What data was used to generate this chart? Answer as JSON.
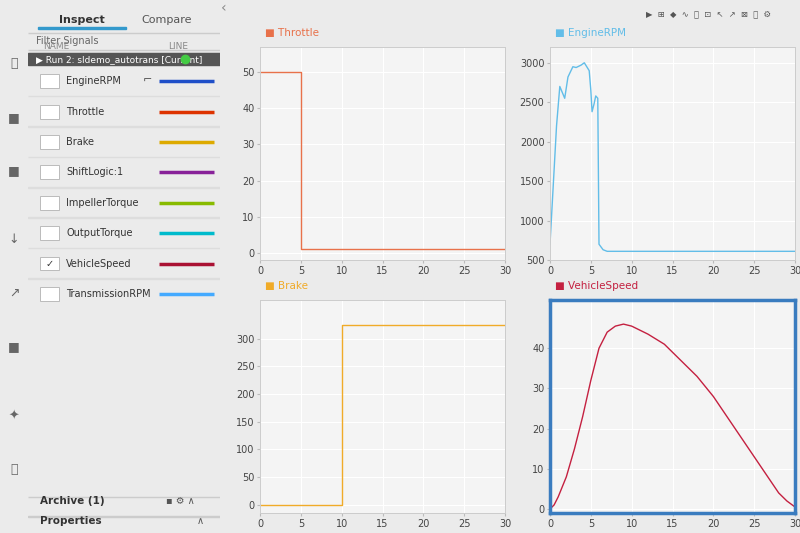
{
  "fig_width": 8.0,
  "fig_height": 5.33,
  "dpi": 100,
  "plots_bg_color": "#f4f4f4",
  "panel_bg_color": "#ebebeb",
  "sidebar_bg_color": "#ebebeb",
  "icon_strip_color": "#d5d5d5",
  "grid_color": "#ffffff",
  "subplot_titles": [
    "Throttle",
    "EngineRPM",
    "Brake",
    "VehicleSpeed"
  ],
  "subplot_colors": [
    "#e8714a",
    "#62bde8",
    "#f0ab28",
    "#c42040"
  ],
  "xlim": [
    0,
    30
  ],
  "xticklabels": [
    0,
    5,
    10,
    15,
    20,
    25,
    30
  ],
  "active_subplot_idx": 3,
  "active_border_color": "#3a7cbf",
  "throttle": {
    "x": [
      0,
      5,
      5,
      30
    ],
    "y": [
      50,
      50,
      1,
      1
    ],
    "ylim": [
      -2,
      57
    ],
    "yticks": [
      0,
      10,
      20,
      30,
      40,
      50
    ]
  },
  "engineRPM": {
    "x": [
      0,
      0.8,
      1.2,
      1.8,
      2.2,
      2.8,
      3.2,
      3.8,
      4.2,
      4.8,
      5.0,
      5.15,
      5.4,
      5.6,
      5.85,
      6.0,
      6.5,
      7.0,
      10.0,
      30.0
    ],
    "y": [
      700,
      2200,
      2700,
      2550,
      2820,
      2950,
      2940,
      2970,
      3000,
      2900,
      2650,
      2380,
      2480,
      2580,
      2550,
      700,
      630,
      610,
      610,
      610
    ],
    "ylim": [
      500,
      3200
    ],
    "yticks": [
      500,
      1000,
      1500,
      2000,
      2500,
      3000
    ]
  },
  "brake": {
    "x": [
      0,
      10,
      10,
      30
    ],
    "y": [
      0,
      0,
      325,
      325
    ],
    "ylim": [
      -15,
      370
    ],
    "yticks": [
      0,
      50,
      100,
      150,
      200,
      250,
      300
    ]
  },
  "vehicleSpeed": {
    "x": [
      0,
      0.5,
      1,
      2,
      3,
      4,
      5,
      6,
      7,
      8,
      9,
      10,
      11,
      12,
      14,
      16,
      18,
      20,
      22,
      24,
      26,
      27,
      28,
      29,
      30
    ],
    "y": [
      0,
      1,
      3,
      8,
      15,
      23,
      32,
      40,
      44,
      45.5,
      46,
      45.5,
      44.5,
      43.5,
      41,
      37,
      33,
      28,
      22,
      16,
      10,
      7,
      4,
      2,
      0.5
    ],
    "ylim": [
      -1,
      52
    ],
    "yticks": [
      0,
      10,
      20,
      30,
      40
    ]
  },
  "sidebar": {
    "signals": [
      "EngineRPM",
      "Throttle",
      "Brake",
      "ShiftLogic:1",
      "ImpellerTorque",
      "OutputTorque",
      "VehicleSpeed",
      "TransmissionRPM"
    ],
    "signal_colors": [
      "#1f4fc8",
      "#dd3300",
      "#ddaa00",
      "#882299",
      "#88bb00",
      "#00bbcc",
      "#aa1133",
      "#44aaff"
    ],
    "signal_line_styles": [
      "solid",
      "solid",
      "solid",
      "solid",
      "solid",
      "solid",
      "solid",
      "solid"
    ],
    "checked": [
      false,
      false,
      false,
      false,
      false,
      false,
      true,
      false
    ],
    "has_icon": [
      true,
      false,
      false,
      false,
      false,
      false,
      false,
      false
    ]
  }
}
